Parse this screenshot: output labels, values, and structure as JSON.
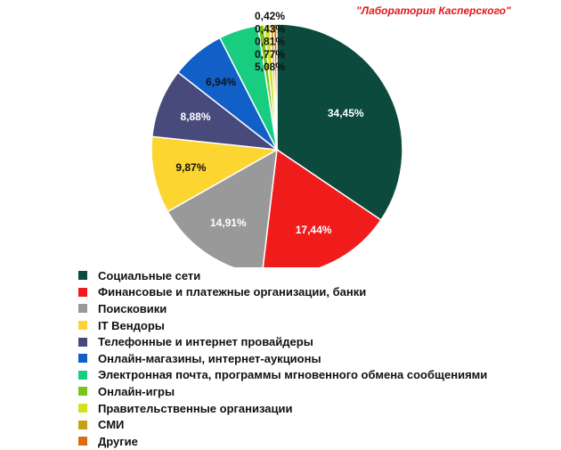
{
  "watermark": "\"Лаборатория Касперского\"",
  "chart_data": {
    "type": "pie",
    "title": "",
    "categories": [
      "Социальные сети",
      "Финансовые и платежные организации, банки",
      "Поисковики",
      "IT Вендоры",
      "Телефонные и интернет провайдеры",
      "Онлайн-магазины, интернет-аукционы",
      "Электронная почта, программы мгновенного обмена сообщениями",
      "Онлайн-игры",
      "Правительственные организации",
      "СМИ",
      "Другие"
    ],
    "values": [
      34.45,
      17.44,
      14.91,
      9.87,
      8.88,
      6.94,
      5.08,
      0.77,
      0.81,
      0.43,
      0.42
    ],
    "data_labels": [
      "34,45%",
      "17,44%",
      "14,91%",
      "9,87%",
      "8,88%",
      "6,94%",
      "5,08%",
      "0,77%",
      "0,81%",
      "0,43%",
      "0,42%"
    ],
    "colors": [
      "#0b4a3c",
      "#f01c1c",
      "#999999",
      "#fcd531",
      "#474a7a",
      "#1160c8",
      "#18cc80",
      "#7ac31c",
      "#d3e21e",
      "#c8a018",
      "#d86c10"
    ],
    "label_colors": [
      "#ffffff",
      "#ffffff",
      "#ffffff",
      "#111111",
      "#ffffff",
      "#111111",
      "#111111",
      "#111111",
      "#111111",
      "#111111",
      "#111111"
    ],
    "legend_position": "bottom-left",
    "start_angle_deg": 0,
    "direction": "clockwise"
  }
}
